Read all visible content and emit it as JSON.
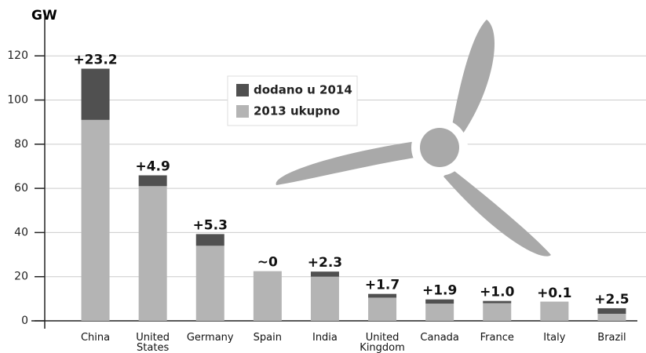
{
  "chart_data": {
    "type": "stacked_bar",
    "y_label": "GW",
    "categories": [
      "China",
      "United States",
      "Germany",
      "Spain",
      "India",
      "United Kingdom",
      "Canada",
      "France",
      "Italy",
      "Brazil"
    ],
    "series": [
      {
        "name": "2013 ukupno",
        "color": "#b4b4b4",
        "values": [
          91,
          61,
          34,
          22.5,
          20,
          10.5,
          7.8,
          8,
          8.5,
          3.2
        ]
      },
      {
        "name": "dodano u 2014",
        "color": "#505050",
        "values": [
          23.2,
          4.9,
          5.3,
          0,
          2.3,
          1.7,
          1.9,
          1.0,
          0.1,
          2.5
        ],
        "value_labels": [
          "+23.2",
          "+4.9",
          "+5.3",
          "~0",
          "+2.3",
          "+1.7",
          "+1.9",
          "+1.0",
          "+0.1",
          "+2.5"
        ]
      }
    ],
    "ylim": [
      0,
      135
    ],
    "yticks": [
      0,
      20,
      40,
      60,
      80,
      100,
      120
    ],
    "grid": true
  }
}
